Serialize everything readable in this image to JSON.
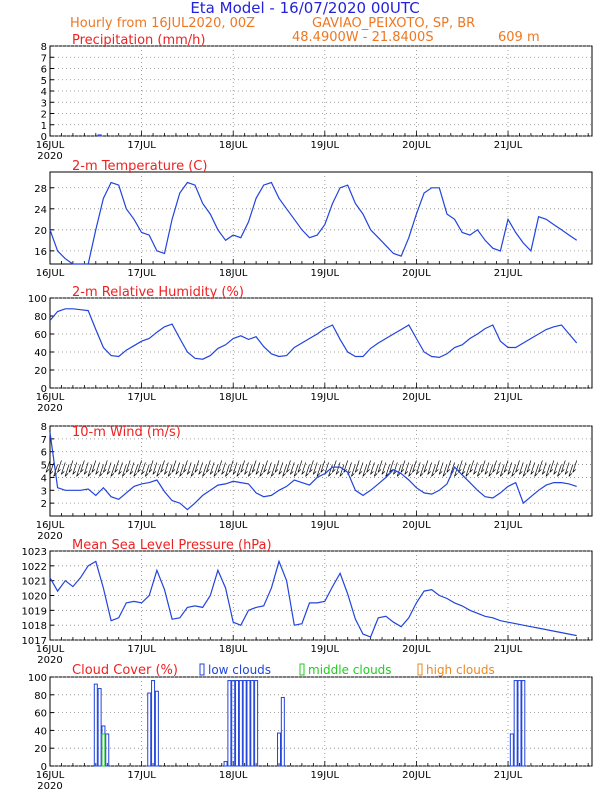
{
  "header": {
    "title": "Eta Model - 16/07/2020 00UTC",
    "subtitle": "Hourly from 16JUL2020, 00Z",
    "location": "GAVIAO_PEIXOTO, SP, BR",
    "coords": "48.4900W - 21.8400S",
    "elevation": "609  m",
    "title_color": "#2222dd",
    "accent_color": "#ee7722"
  },
  "colors": {
    "panel_title": "#ee2222",
    "series": "#2244dd",
    "low_clouds": "#2244dd",
    "middle_clouds": "#22cc22",
    "high_clouds": "#ee8822"
  },
  "days": [
    "16JUL",
    "17JUL",
    "18JUL",
    "19JUL",
    "20JUL",
    "21JUL"
  ],
  "year": "2020",
  "chart_data": [
    {
      "type": "bar",
      "title": "Precipitation (mm/h)",
      "ylim": [
        0,
        8
      ],
      "yticks": [
        "0",
        "1",
        "2",
        "3",
        "4",
        "5",
        "6",
        "7",
        "8"
      ],
      "x_hours": [
        13
      ],
      "values": [
        0.1
      ]
    },
    {
      "type": "line",
      "title": "2-m Temperature (C)",
      "ylim": [
        13.5,
        31
      ],
      "yticks": [
        "16",
        "20",
        "24",
        "28"
      ],
      "ytick_values": [
        16,
        20,
        24,
        28
      ],
      "x_hours": [
        0,
        2,
        4,
        6,
        8,
        10,
        12,
        14,
        16,
        18,
        20,
        22,
        24,
        26,
        28,
        30,
        32,
        34,
        36,
        38,
        40,
        42,
        44,
        46,
        48,
        50,
        52,
        54,
        56,
        58,
        60,
        62,
        64,
        66,
        68,
        70,
        72,
        74,
        76,
        78,
        80,
        82,
        84,
        86,
        88,
        90,
        92,
        94,
        96,
        98,
        100,
        102,
        104,
        106,
        108,
        110,
        112,
        114,
        116,
        118,
        120,
        122,
        124,
        126,
        128,
        130,
        132,
        134,
        136,
        138
      ],
      "values": [
        20,
        16,
        14.5,
        13.5,
        13.2,
        13.3,
        20,
        26,
        29,
        28.5,
        24,
        22,
        19.5,
        19,
        16,
        15.5,
        22,
        27,
        29,
        28.5,
        25,
        23,
        20,
        18,
        19,
        18.5,
        21.5,
        26,
        28.5,
        29,
        26,
        24,
        22,
        20,
        18.5,
        19,
        21,
        25,
        28,
        28.5,
        25,
        23,
        20,
        18.5,
        17,
        15.5,
        15,
        18.5,
        23,
        27,
        28,
        28,
        23,
        22,
        19.5,
        19,
        20,
        18,
        16.5,
        16,
        22,
        19.5,
        17.5,
        16,
        22.5,
        22,
        21,
        20,
        19,
        18
      ]
    },
    {
      "type": "line",
      "title": "2-m Relative Humidity (%)",
      "ylim": [
        0,
        100
      ],
      "yticks": [
        "0",
        "20",
        "40",
        "60",
        "80",
        "100"
      ],
      "ytick_values": [
        0,
        20,
        40,
        60,
        80,
        100
      ],
      "x_hours": [
        0,
        2,
        4,
        6,
        8,
        10,
        12,
        14,
        16,
        18,
        20,
        22,
        24,
        26,
        28,
        30,
        32,
        34,
        36,
        38,
        40,
        42,
        44,
        46,
        48,
        50,
        52,
        54,
        56,
        58,
        60,
        62,
        64,
        66,
        68,
        70,
        72,
        74,
        76,
        78,
        80,
        82,
        84,
        86,
        88,
        90,
        92,
        94,
        96,
        98,
        100,
        102,
        104,
        106,
        108,
        110,
        112,
        114,
        116,
        118,
        120,
        122,
        124,
        126,
        128,
        130,
        132,
        134,
        136,
        138
      ],
      "values": [
        75,
        85,
        88,
        88,
        87,
        86,
        65,
        45,
        36,
        35,
        42,
        47,
        52,
        55,
        62,
        68,
        71,
        55,
        40,
        33,
        32,
        36,
        44,
        48,
        55,
        58,
        54,
        57,
        46,
        38,
        35,
        36,
        45,
        50,
        55,
        60,
        66,
        70,
        54,
        40,
        35,
        35,
        44,
        50,
        55,
        60,
        65,
        70,
        55,
        40,
        35,
        34,
        38,
        45,
        48,
        55,
        60,
        66,
        70,
        52,
        45,
        45,
        50,
        55,
        60,
        65,
        68,
        70,
        60,
        50
      ]
    },
    {
      "type": "line",
      "title": "10-m Wind (m/s)",
      "ylim": [
        1,
        8
      ],
      "yticks": [
        "2",
        "3",
        "4",
        "5",
        "6",
        "7",
        "8"
      ],
      "ytick_values": [
        2,
        3,
        4,
        5,
        6,
        7,
        8
      ],
      "x_hours": [
        0,
        2,
        4,
        6,
        8,
        10,
        12,
        14,
        16,
        18,
        20,
        22,
        24,
        26,
        28,
        30,
        32,
        34,
        36,
        38,
        40,
        42,
        44,
        46,
        48,
        50,
        52,
        54,
        56,
        58,
        60,
        62,
        64,
        66,
        68,
        70,
        72,
        74,
        76,
        78,
        80,
        82,
        84,
        86,
        88,
        90,
        92,
        94,
        96,
        98,
        100,
        102,
        104,
        106,
        108,
        110,
        112,
        114,
        116,
        118,
        120,
        122,
        124,
        126,
        128,
        130,
        132,
        134,
        136,
        138
      ],
      "values": [
        7.5,
        3.2,
        3.0,
        3.0,
        3.0,
        3.1,
        2.6,
        3.2,
        2.5,
        2.3,
        2.8,
        3.3,
        3.5,
        3.6,
        3.8,
        2.9,
        2.2,
        2.0,
        1.5,
        2.0,
        2.6,
        3.0,
        3.4,
        3.5,
        3.7,
        3.6,
        3.5,
        2.8,
        2.5,
        2.6,
        3.0,
        3.3,
        3.8,
        3.6,
        3.4,
        4.0,
        4.3,
        4.8,
        4.8,
        4.4,
        3.0,
        2.6,
        3.0,
        3.5,
        4.0,
        4.6,
        4.3,
        3.8,
        3.2,
        2.8,
        2.7,
        3.0,
        3.5,
        4.8,
        4.2,
        3.6,
        3.0,
        2.5,
        2.4,
        2.8,
        3.3,
        3.6,
        2.0,
        2.5,
        3.0,
        3.4,
        3.6,
        3.6,
        3.5,
        3.3
      ],
      "barb_band": [
        4.0,
        5.0
      ]
    },
    {
      "type": "line",
      "title": "Mean Sea Level Pressure (hPa)",
      "ylim": [
        1017,
        1023
      ],
      "yticks": [
        "1017",
        "1018",
        "1019",
        "1020",
        "1021",
        "1022",
        "1023"
      ],
      "ytick_values": [
        1017,
        1018,
        1019,
        1020,
        1021,
        1022,
        1023
      ],
      "x_hours": [
        0,
        2,
        4,
        6,
        8,
        10,
        12,
        14,
        16,
        18,
        20,
        22,
        24,
        26,
        28,
        30,
        32,
        34,
        36,
        38,
        40,
        42,
        44,
        46,
        48,
        50,
        52,
        54,
        56,
        58,
        60,
        62,
        64,
        66,
        68,
        70,
        72,
        74,
        76,
        78,
        80,
        82,
        84,
        86,
        88,
        90,
        92,
        94,
        96,
        98,
        100,
        102,
        104,
        106,
        108,
        110,
        112,
        114,
        116,
        118,
        120,
        122,
        124,
        126,
        128,
        130,
        132,
        134,
        136,
        138
      ],
      "values": [
        1021.2,
        1020.3,
        1021.0,
        1020.6,
        1021.2,
        1022.0,
        1022.3,
        1020.5,
        1018.3,
        1018.5,
        1019.5,
        1019.6,
        1019.5,
        1020.0,
        1021.7,
        1020.4,
        1018.4,
        1018.5,
        1019.2,
        1019.3,
        1019.2,
        1020.0,
        1021.7,
        1020.5,
        1018.2,
        1018.0,
        1019.0,
        1019.2,
        1019.3,
        1020.5,
        1022.3,
        1021.0,
        1018.0,
        1018.1,
        1019.5,
        1019.5,
        1019.6,
        1020.6,
        1021.5,
        1020.1,
        1018.4,
        1017.4,
        1017.2,
        1018.5,
        1018.6,
        1018.2,
        1017.9,
        1018.5,
        1019.5,
        1020.3,
        1020.4,
        1020.0,
        1019.8,
        1019.5,
        1019.3,
        1019.0,
        1018.8,
        1018.6,
        1018.5,
        1018.3,
        1018.2,
        1018.1,
        1018.0,
        1017.9,
        1017.8,
        1017.7,
        1017.6,
        1017.5,
        1017.4,
        1017.3
      ]
    },
    {
      "type": "bar",
      "title": "Cloud Cover (%)",
      "legend": [
        "low clouds",
        "middle clouds",
        "high clouds"
      ],
      "ylim": [
        0,
        100
      ],
      "yticks": [
        "0",
        "20",
        "40",
        "60",
        "80",
        "100"
      ],
      "ytick_values": [
        0,
        20,
        40,
        60,
        80,
        100
      ],
      "series": [
        {
          "name": "low clouds",
          "x_hours": [
            12,
            13,
            14,
            15,
            26,
            27,
            28,
            46,
            47,
            48,
            49,
            50,
            51,
            52,
            53,
            54,
            60,
            61,
            121,
            122,
            123,
            124
          ],
          "values": [
            92,
            87,
            45,
            36,
            82,
            96,
            84,
            5,
            96,
            96,
            96,
            96,
            96,
            96,
            96,
            96,
            37,
            77,
            36,
            96,
            96,
            96
          ]
        },
        {
          "name": "middle clouds",
          "x_hours": [
            14
          ],
          "values": [
            36
          ]
        },
        {
          "name": "high clouds",
          "x_hours": [],
          "values": []
        }
      ]
    }
  ]
}
